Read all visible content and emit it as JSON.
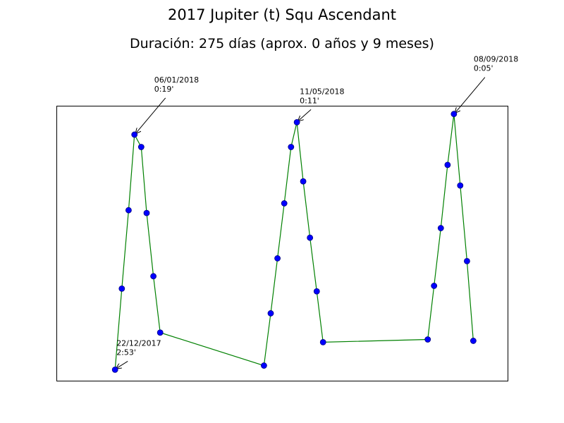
{
  "chart_data": {
    "type": "line",
    "title": "2017 Jupiter (t) Squ Ascendant",
    "subtitle": "Duración: 275 días (aprox. 0 años y 9 meses)",
    "xlabel": "",
    "ylabel": "",
    "grid": false,
    "legend": "none",
    "axes_ticks": false,
    "colors": {
      "line": "#008000",
      "marker_fill": "#0000ff",
      "marker_edge": "#000080",
      "annotation": "#000000",
      "frame": "#000000"
    },
    "xlim": [
      0,
      100
    ],
    "ylim": [
      0,
      100
    ],
    "points": [
      {
        "x": 13.0,
        "y": 4.0
      },
      {
        "x": 14.5,
        "y": 33.5
      },
      {
        "x": 16.0,
        "y": 62.0
      },
      {
        "x": 17.3,
        "y": 89.5
      },
      {
        "x": 18.8,
        "y": 85.0
      },
      {
        "x": 20.0,
        "y": 61.0
      },
      {
        "x": 21.5,
        "y": 38.0
      },
      {
        "x": 23.0,
        "y": 17.5
      },
      {
        "x": 46.0,
        "y": 5.5
      },
      {
        "x": 47.5,
        "y": 24.5
      },
      {
        "x": 49.0,
        "y": 44.5
      },
      {
        "x": 50.5,
        "y": 64.5
      },
      {
        "x": 52.0,
        "y": 85.0
      },
      {
        "x": 53.3,
        "y": 94.0
      },
      {
        "x": 54.7,
        "y": 72.5
      },
      {
        "x": 56.2,
        "y": 52.0
      },
      {
        "x": 57.7,
        "y": 32.5
      },
      {
        "x": 59.1,
        "y": 14.0
      },
      {
        "x": 82.3,
        "y": 15.0
      },
      {
        "x": 83.7,
        "y": 34.5
      },
      {
        "x": 85.2,
        "y": 55.5
      },
      {
        "x": 86.7,
        "y": 78.5
      },
      {
        "x": 88.1,
        "y": 97.0
      },
      {
        "x": 89.5,
        "y": 71.0
      },
      {
        "x": 91.0,
        "y": 43.5
      },
      {
        "x": 92.4,
        "y": 14.5
      }
    ],
    "annotations": [
      {
        "point_index": 0,
        "date": "22/12/2017",
        "time": "2:53'"
      },
      {
        "point_index": 3,
        "date": "06/01/2018",
        "time": "0:19'"
      },
      {
        "point_index": 13,
        "date": "11/05/2018",
        "time": "0:11'"
      },
      {
        "point_index": 22,
        "date": "08/09/2018",
        "time": "0:05'"
      }
    ]
  }
}
